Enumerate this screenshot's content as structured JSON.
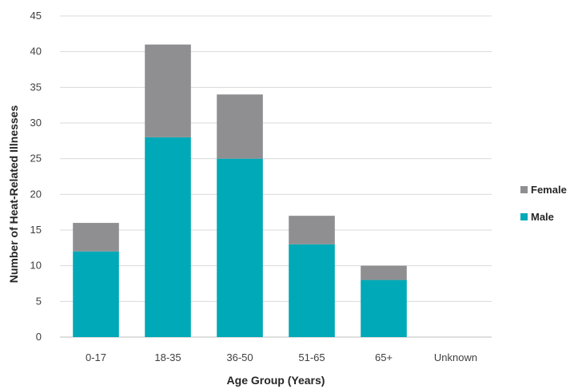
{
  "chart_data": {
    "type": "bar",
    "stacked": true,
    "title": "",
    "xlabel": "Age Group (Years)",
    "ylabel": "Number of Heat-Related Illnesses",
    "categories": [
      "0-17",
      "18-35",
      "36-50",
      "51-65",
      "65+",
      "Unknown"
    ],
    "series": [
      {
        "name": "Male",
        "color": "#00A9B7",
        "values": [
          12,
          28,
          25,
          13,
          8,
          0
        ]
      },
      {
        "name": "Female",
        "color": "#8F8F92",
        "values": [
          4,
          13,
          9,
          4,
          2,
          0
        ]
      }
    ],
    "ylim": [
      0,
      45
    ],
    "yticks": [
      0,
      5,
      10,
      15,
      20,
      25,
      30,
      35,
      40,
      45
    ],
    "grid": true,
    "legend_position": "right",
    "legend_order": [
      "Female",
      "Male"
    ]
  }
}
